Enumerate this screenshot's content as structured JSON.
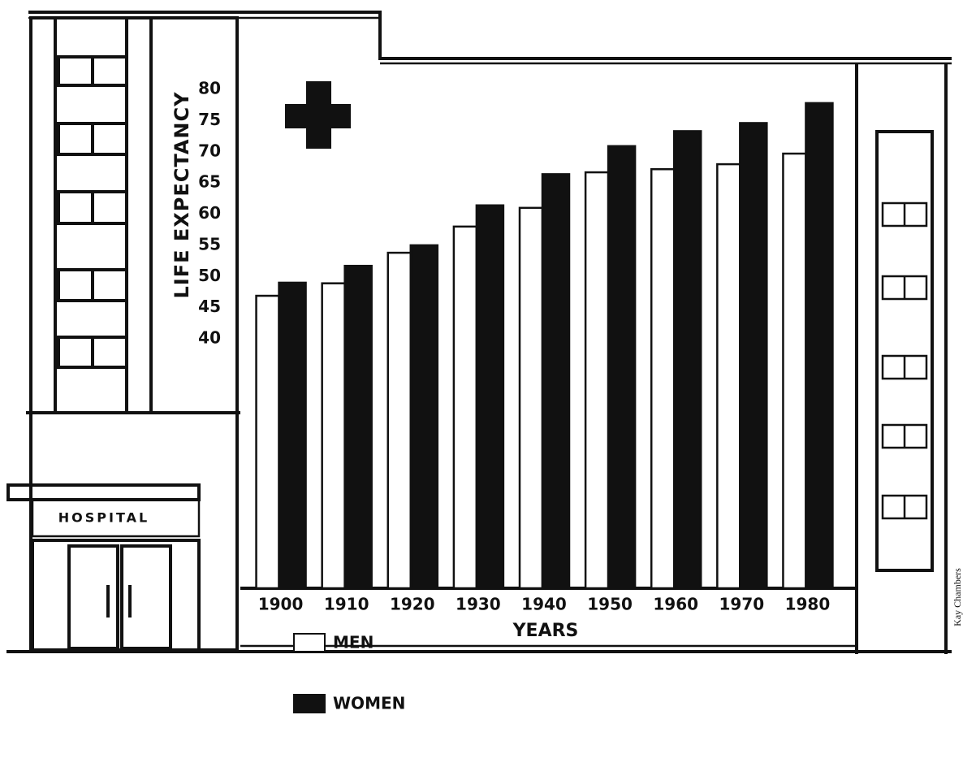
{
  "chart_data": {
    "type": "bar",
    "y_label": "LIFE EXPECTANCY",
    "x_label": "YEARS",
    "categories": [
      "1900",
      "1910",
      "1920",
      "1930",
      "1940",
      "1950",
      "1960",
      "1970",
      "1980"
    ],
    "series": [
      {
        "name": "MEN",
        "color": "#ffffff",
        "values": [
          46.9,
          48.9,
          53.8,
          58.0,
          61.0,
          66.7,
          67.2,
          68.0,
          69.7
        ]
      },
      {
        "name": "WOMEN",
        "color": "#111111",
        "values": [
          49.0,
          51.7,
          55.0,
          61.4,
          66.4,
          70.9,
          73.3,
          74.6,
          77.8
        ]
      }
    ],
    "ylim": [
      0,
      80
    ],
    "yticks": [
      40,
      45,
      50,
      55,
      60,
      65,
      70,
      75,
      80
    ],
    "grid": false,
    "sign": "HOSPITAL",
    "credit": "Kay Chambers"
  }
}
